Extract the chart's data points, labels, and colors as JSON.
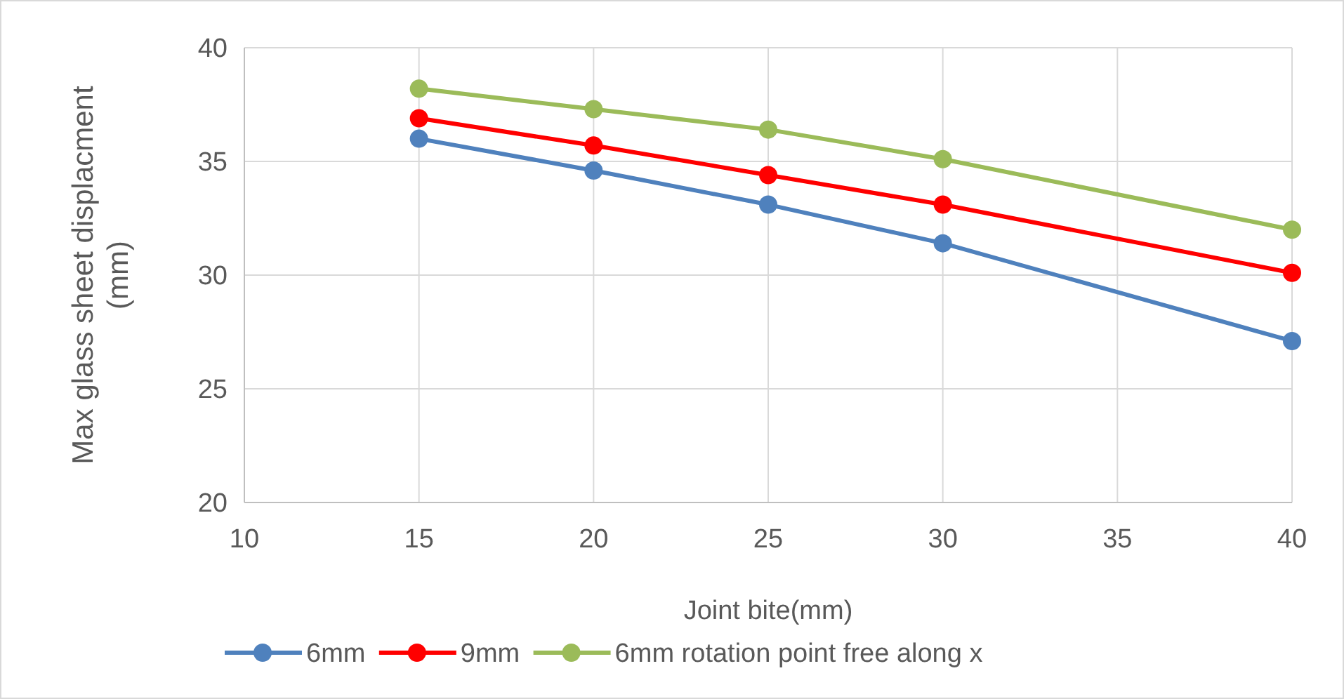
{
  "chart_data": {
    "type": "line",
    "xlabel": "Joint bite(mm)",
    "ylabel": "Max glass sheet displacment (mm)",
    "x": [
      15,
      20,
      25,
      30,
      40
    ],
    "series": [
      {
        "name": "6mm",
        "color": "#4f81bd",
        "values": [
          36.0,
          34.6,
          33.1,
          31.4,
          27.1
        ]
      },
      {
        "name": "9mm",
        "color": "#ff0000",
        "values": [
          36.9,
          35.7,
          34.4,
          33.1,
          30.1
        ]
      },
      {
        "name": "6mm rotation point free along x",
        "color": "#9bbb59",
        "values": [
          38.2,
          37.3,
          36.4,
          35.1,
          32.0
        ]
      }
    ],
    "xlim": [
      10,
      40
    ],
    "xticks": [
      10,
      15,
      20,
      25,
      30,
      35,
      40
    ],
    "ylim": [
      20,
      40
    ],
    "yticks": [
      20,
      25,
      30,
      35,
      40
    ],
    "grid": true,
    "legend": "bottom",
    "marker": "circle",
    "line_style": "solid"
  }
}
